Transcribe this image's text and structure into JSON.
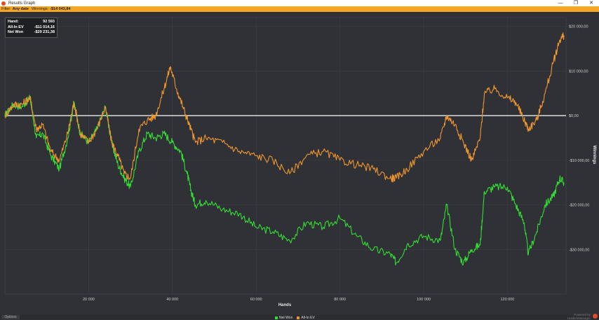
{
  "window": {
    "title": "Results Graph",
    "minimize": "—",
    "maximize": "❐",
    "close": "✕"
  },
  "filter": {
    "label": "Filter:",
    "value": "Any date",
    "winnings_label": "Winnings:",
    "winnings_value": "-$14 043,84"
  },
  "tooltip": {
    "rows": [
      {
        "label": "Hand:",
        "value": "92 593"
      },
      {
        "label": "All-In EV",
        "value": "-$11 014,16"
      },
      {
        "label": "Net Won",
        "value": "-$29 231,38"
      }
    ]
  },
  "footer": {
    "left_button": "Options",
    "powered_by": "Powered by",
    "brand": "HoldemManager"
  },
  "colors": {
    "net_won": "#33dd33",
    "allin_ev": "#f0962e",
    "zero_line": "#ffffff",
    "background": "#2f3136",
    "grid": "#3d4045"
  },
  "chart_data": {
    "type": "line",
    "xlabel": "Hands",
    "ylabel": "Winnings",
    "xlim": [
      0,
      134000
    ],
    "ylim": [
      -40000,
      22000
    ],
    "x_ticks": [
      20000,
      40000,
      60000,
      80000,
      100000,
      120000
    ],
    "x_tick_labels": [
      "20 000",
      "40 000",
      "60 000",
      "80 000",
      "100 000",
      "120 000"
    ],
    "y_ticks": [
      20000,
      10000,
      0,
      -10000,
      -20000,
      -30000
    ],
    "y_tick_labels": [
      "$20 000,00",
      "$10 000,00",
      "$0,00",
      "-$10 000,00",
      "-$20 000,00",
      "-$30 000,00"
    ],
    "grid": true,
    "legend_position": "bottom-center",
    "series": [
      {
        "name": "Net Won",
        "color": "#33dd33",
        "x": [
          0,
          2000,
          4000,
          6000,
          7500,
          9000,
          11000,
          13000,
          15000,
          16500,
          18000,
          20000,
          22000,
          24000,
          25500,
          27000,
          28500,
          30000,
          32000,
          34000,
          36000,
          38000,
          40000,
          42000,
          43500,
          44500,
          45500,
          48000,
          52000,
          56000,
          60000,
          64000,
          68000,
          72000,
          76000,
          80000,
          84000,
          88000,
          92000,
          93500,
          96000,
          100000,
          104000,
          105500,
          107500,
          109500,
          111500,
          113500,
          114500,
          117000,
          120000,
          122000,
          124000,
          125000,
          127000,
          129000,
          131000,
          132500,
          133500
        ],
        "y": [
          0,
          2500,
          2000,
          4000,
          -5000,
          -4000,
          -9000,
          -12000,
          -5000,
          3000,
          -4000,
          -6000,
          -3000,
          2000,
          -6000,
          -11000,
          -14000,
          -16000,
          -8000,
          -4000,
          -5000,
          -4000,
          -6000,
          -8000,
          -13000,
          -17000,
          -20000,
          -19000,
          -21000,
          -22000,
          -25000,
          -26000,
          -28000,
          -24000,
          -25000,
          -23000,
          -27000,
          -30000,
          -31000,
          -33000,
          -29000,
          -27000,
          -28000,
          -20000,
          -30000,
          -33000,
          -30000,
          -29000,
          -17000,
          -16000,
          -16000,
          -20000,
          -24000,
          -31000,
          -26000,
          -20000,
          -18000,
          -14000,
          -15000
        ]
      },
      {
        "name": "All-In EV",
        "color": "#f0962e",
        "x": [
          0,
          2000,
          4000,
          6000,
          7500,
          9000,
          11000,
          13000,
          15000,
          16500,
          18000,
          20000,
          22000,
          24000,
          25500,
          27000,
          28500,
          30000,
          32000,
          34000,
          36000,
          38000,
          39500,
          41000,
          42500,
          44000,
          45500,
          48000,
          52000,
          56000,
          60000,
          64000,
          68000,
          72000,
          76000,
          80000,
          84000,
          88000,
          92000,
          93500,
          96000,
          100000,
          104000,
          105500,
          107500,
          109500,
          111500,
          113500,
          114500,
          117000,
          120000,
          122000,
          124000,
          125000,
          127000,
          129000,
          131000,
          132500,
          133500
        ],
        "y": [
          0,
          2500,
          2500,
          4000,
          -3000,
          -2000,
          -8000,
          -10000,
          -4000,
          3000,
          -4000,
          -6000,
          -3000,
          2000,
          -6000,
          -9000,
          -13000,
          -14000,
          -3000,
          -1000,
          0,
          6000,
          11000,
          6000,
          2000,
          -2000,
          -6000,
          -5000,
          -6000,
          -8000,
          -9000,
          -10000,
          -13000,
          -9000,
          -8000,
          -10000,
          -11000,
          -12000,
          -14000,
          -14000,
          -12000,
          -8000,
          -5000,
          0,
          -2000,
          -6000,
          -10000,
          -5000,
          5000,
          6000,
          4000,
          3000,
          -1000,
          -3000,
          -1000,
          5000,
          12000,
          17000,
          18000
        ]
      }
    ]
  }
}
